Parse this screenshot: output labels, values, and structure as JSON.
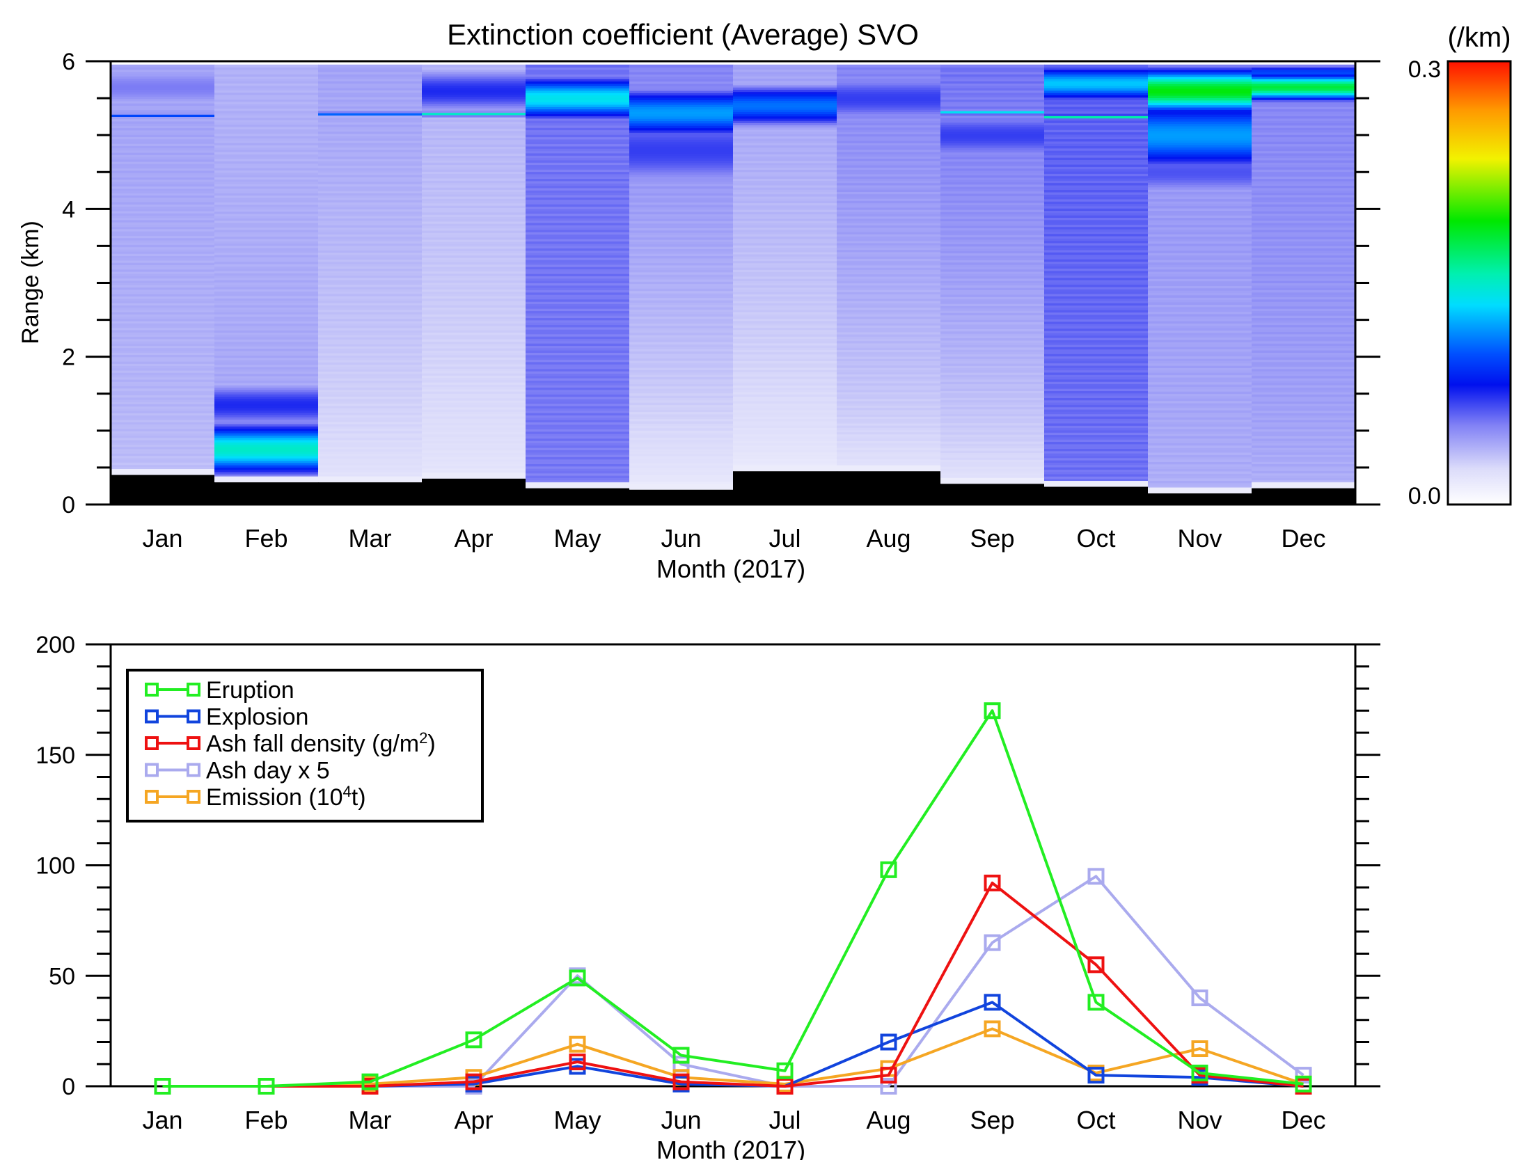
{
  "chart_data": [
    {
      "type": "heatmap",
      "title": "Extinction coefficient (Average) SVO",
      "xlabel": "Month (2017)",
      "ylabel": "Range (km)",
      "categories": [
        "Jan",
        "Feb",
        "Mar",
        "Apr",
        "May",
        "Jun",
        "Jul",
        "Aug",
        "Sep",
        "Oct",
        "Nov",
        "Dec"
      ],
      "ylim": [
        0,
        6
      ],
      "y_ticks": [
        0,
        2,
        4,
        6
      ],
      "y_tick_labels": [
        "0",
        "2",
        "4",
        "6"
      ],
      "colorbar": {
        "label": "(/km)",
        "min": 0.0,
        "max": 0.3,
        "min_label": "0.0",
        "max_label": "0.3"
      },
      "columns": [
        {
          "month": "Jan",
          "bottom_km": 0.4,
          "base": 0.035,
          "top": 0.045,
          "features": [
            {
              "center": 5.65,
              "width": 0.35,
              "value": 0.055
            },
            {
              "center": 5.27,
              "width": 0.03,
              "value": 0.1
            }
          ]
        },
        {
          "month": "Feb",
          "bottom_km": 0.3,
          "base": 0.045,
          "top": 0.04,
          "features": [
            {
              "center": 0.75,
              "width": 0.35,
              "value": 0.15
            },
            {
              "center": 1.35,
              "width": 0.35,
              "value": 0.075
            }
          ]
        },
        {
          "month": "Mar",
          "bottom_km": 0.3,
          "base": 0.02,
          "top": 0.045,
          "features": [
            {
              "center": 5.29,
              "width": 0.03,
              "value": 0.11
            }
          ]
        },
        {
          "month": "Apr",
          "bottom_km": 0.35,
          "base": 0.018,
          "top": 0.04,
          "features": [
            {
              "center": 5.6,
              "width": 0.35,
              "value": 0.075
            },
            {
              "center": 5.29,
              "width": 0.03,
              "value": 0.15
            }
          ]
        },
        {
          "month": "May",
          "bottom_km": 0.22,
          "base": 0.058,
          "top": 0.06,
          "features": [
            {
              "center": 5.5,
              "width": 0.3,
              "value": 0.14
            }
          ]
        },
        {
          "month": "Jun",
          "bottom_km": 0.2,
          "base": 0.015,
          "top": 0.055,
          "features": [
            {
              "center": 5.3,
              "width": 0.35,
              "value": 0.12
            },
            {
              "center": 4.8,
              "width": 0.6,
              "value": 0.07
            }
          ]
        },
        {
          "month": "Jul",
          "bottom_km": 0.45,
          "base": 0.015,
          "top": 0.045,
          "features": [
            {
              "center": 5.4,
              "width": 0.3,
              "value": 0.11
            }
          ]
        },
        {
          "month": "Aug",
          "bottom_km": 0.45,
          "base": 0.02,
          "top": 0.055,
          "features": [
            {
              "center": 5.5,
              "width": 0.4,
              "value": 0.07
            }
          ]
        },
        {
          "month": "Sep",
          "bottom_km": 0.28,
          "base": 0.02,
          "top": 0.06,
          "features": [
            {
              "center": 5.31,
              "width": 0.03,
              "value": 0.14
            },
            {
              "center": 5.0,
              "width": 0.4,
              "value": 0.07
            }
          ]
        },
        {
          "month": "Oct",
          "bottom_km": 0.24,
          "base": 0.06,
          "top": 0.065,
          "features": [
            {
              "center": 5.7,
              "width": 0.25,
              "value": 0.13
            },
            {
              "center": 5.25,
              "width": 0.03,
              "value": 0.16
            }
          ]
        },
        {
          "month": "Nov",
          "bottom_km": 0.15,
          "base": 0.04,
          "top": 0.05,
          "features": [
            {
              "center": 5.6,
              "width": 0.3,
              "value": 0.19
            },
            {
              "center": 5.0,
              "width": 0.5,
              "value": 0.12
            },
            {
              "center": 4.5,
              "width": 0.4,
              "value": 0.065
            }
          ]
        },
        {
          "month": "Dec",
          "bottom_km": 0.22,
          "base": 0.04,
          "top": 0.055,
          "features": [
            {
              "center": 5.65,
              "width": 0.18,
              "value": 0.18
            },
            {
              "center": 5.85,
              "width": 0.1,
              "value": 0.1
            }
          ]
        }
      ]
    },
    {
      "type": "line",
      "xlabel": "Month (2017)",
      "ylabel": "",
      "categories": [
        "Jan",
        "Feb",
        "Mar",
        "Apr",
        "May",
        "Jun",
        "Jul",
        "Aug",
        "Sep",
        "Oct",
        "Nov",
        "Dec"
      ],
      "ylim": [
        0,
        200
      ],
      "y_ticks": [
        0,
        50,
        100,
        150,
        200
      ],
      "y_tick_labels": [
        "0",
        "50",
        "100",
        "150",
        "200"
      ],
      "legend_position": "top-left",
      "series": [
        {
          "name": "Eruption",
          "legend": {
            "text": "Eruption"
          },
          "color": "#22ee22",
          "values": [
            0,
            0,
            2,
            21,
            49,
            14,
            7,
            98,
            170,
            38,
            6,
            1
          ]
        },
        {
          "name": "Explosion",
          "legend": {
            "text": "Explosion"
          },
          "color": "#1144dd",
          "values": [
            0,
            0,
            0,
            1,
            9,
            1,
            0,
            20,
            38,
            5,
            4,
            0
          ]
        },
        {
          "name": "Ash fall density (g/m2)",
          "legend": {
            "text": "Ash fall density (g/m",
            "sup": "2",
            "after": ")"
          },
          "color": "#ee1111",
          "values": [
            0,
            0,
            0,
            2,
            11,
            2,
            0,
            5,
            92,
            55,
            5,
            0
          ]
        },
        {
          "name": "Ash day x 5",
          "legend": {
            "text": "Ash day x 5"
          },
          "color": "#aaaaee",
          "values": [
            0,
            0,
            0,
            0,
            50,
            10,
            0,
            0,
            65,
            95,
            40,
            5
          ]
        },
        {
          "name": "Emission (10^4t)",
          "legend": {
            "text": "Emission (10",
            "sup": "4",
            "after": "t)"
          },
          "color": "#f5a623",
          "values": [
            0,
            0,
            1,
            4,
            19,
            4,
            1,
            8,
            26,
            6,
            17,
            1
          ]
        }
      ]
    }
  ]
}
